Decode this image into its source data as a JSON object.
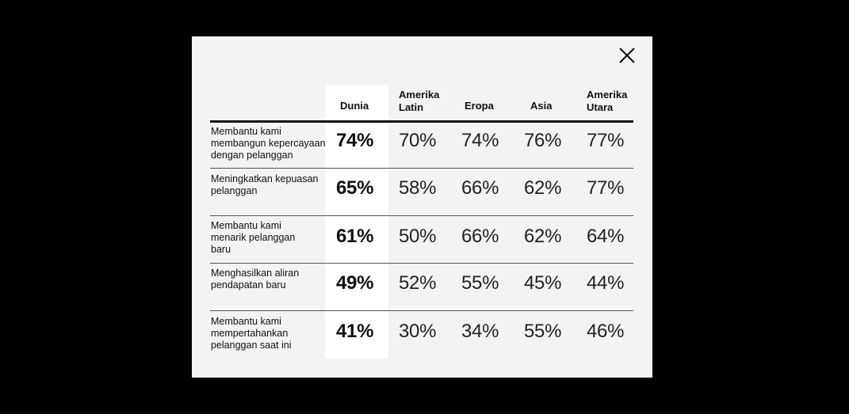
{
  "dialog": {
    "close_icon": "close-icon"
  },
  "table": {
    "columns": [
      "Dunia",
      "Amerika Latin",
      "Eropa",
      "Asia",
      "Amerika Utara"
    ],
    "rows": [
      {
        "label": "Membantu kami membangun kepercayaan dengan pelanggan",
        "values": [
          "74%",
          "70%",
          "74%",
          "76%",
          "77%"
        ]
      },
      {
        "label": "Meningkatkan kepuasan pelanggan",
        "values": [
          "65%",
          "58%",
          "66%",
          "62%",
          "77%"
        ]
      },
      {
        "label": "Membantu kami menarik pelanggan baru",
        "values": [
          "61%",
          "50%",
          "66%",
          "62%",
          "64%"
        ]
      },
      {
        "label": "Menghasilkan aliran pendapatan baru",
        "values": [
          "49%",
          "52%",
          "55%",
          "45%",
          "44%"
        ]
      },
      {
        "label": "Membantu kami mempertahankan pelanggan saat ini",
        "values": [
          "41%",
          "30%",
          "34%",
          "55%",
          "46%"
        ]
      }
    ]
  },
  "colors": {
    "overlay": "#000000",
    "panel": "#f3f3f3",
    "highlight_column": "#ffffff",
    "text": "#111111"
  }
}
